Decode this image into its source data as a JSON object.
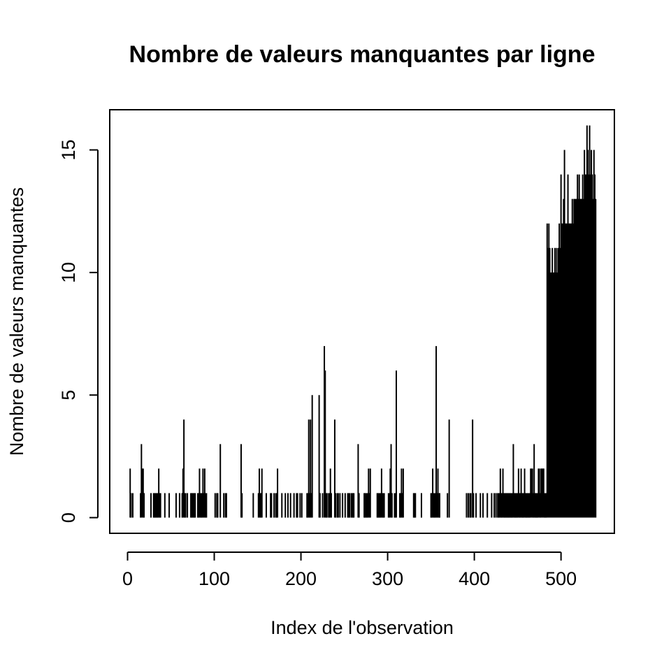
{
  "chart_data": {
    "type": "spike",
    "title": "Nombre de valeurs manquantes par ligne",
    "x_label": "Index de l'observation",
    "y_label": "Nombre de valeurs manquantes",
    "color": "#000000",
    "xlim": [
      -20.56,
      561.56
    ],
    "ylim": [
      -0.64,
      16.64
    ],
    "xticks": [
      0,
      100,
      200,
      300,
      400,
      500
    ],
    "yticks": [
      0,
      5,
      10,
      15
    ],
    "x": [
      1,
      2,
      3,
      4,
      5,
      6,
      7,
      8,
      9,
      10,
      11,
      12,
      13,
      14,
      15,
      16,
      17,
      18,
      19,
      20,
      21,
      22,
      23,
      24,
      25,
      26,
      27,
      28,
      29,
      30,
      31,
      32,
      33,
      34,
      35,
      36,
      37,
      38,
      39,
      40,
      41,
      42,
      43,
      44,
      45,
      46,
      47,
      48,
      49,
      50,
      51,
      52,
      53,
      54,
      55,
      56,
      57,
      58,
      59,
      60,
      61,
      62,
      63,
      64,
      65,
      66,
      67,
      68,
      69,
      70,
      71,
      72,
      73,
      74,
      75,
      76,
      77,
      78,
      79,
      80,
      81,
      82,
      83,
      84,
      85,
      86,
      87,
      88,
      89,
      90,
      91,
      92,
      93,
      94,
      95,
      96,
      97,
      98,
      99,
      100,
      101,
      102,
      103,
      104,
      105,
      106,
      107,
      108,
      109,
      110,
      111,
      112,
      113,
      114,
      115,
      116,
      117,
      118,
      119,
      120,
      121,
      122,
      123,
      124,
      125,
      126,
      127,
      128,
      129,
      130,
      131,
      132,
      133,
      134,
      135,
      136,
      137,
      138,
      139,
      140,
      141,
      142,
      143,
      144,
      145,
      146,
      147,
      148,
      149,
      150,
      151,
      152,
      153,
      154,
      155,
      156,
      157,
      158,
      159,
      160,
      161,
      162,
      163,
      164,
      165,
      166,
      167,
      168,
      169,
      170,
      171,
      172,
      173,
      174,
      175,
      176,
      177,
      178,
      179,
      180,
      181,
      182,
      183,
      184,
      185,
      186,
      187,
      188,
      189,
      190,
      191,
      192,
      193,
      194,
      195,
      196,
      197,
      198,
      199,
      200,
      201,
      202,
      203,
      204,
      205,
      206,
      207,
      208,
      209,
      210,
      211,
      212,
      213,
      214,
      215,
      216,
      217,
      218,
      219,
      220,
      221,
      222,
      223,
      224,
      225,
      226,
      227,
      228,
      229,
      230,
      231,
      232,
      233,
      234,
      235,
      236,
      237,
      238,
      239,
      240,
      241,
      242,
      243,
      244,
      245,
      246,
      247,
      248,
      249,
      250,
      251,
      252,
      253,
      254,
      255,
      256,
      257,
      258,
      259,
      260,
      261,
      262,
      263,
      264,
      265,
      266,
      267,
      268,
      269,
      270,
      271,
      272,
      273,
      274,
      275,
      276,
      277,
      278,
      279,
      280,
      281,
      282,
      283,
      284,
      285,
      286,
      287,
      288,
      289,
      290,
      291,
      292,
      293,
      294,
      295,
      296,
      297,
      298,
      299,
      300,
      301,
      302,
      303,
      304,
      305,
      306,
      307,
      308,
      309,
      310,
      311,
      312,
      313,
      314,
      315,
      316,
      317,
      318,
      319,
      320,
      321,
      322,
      323,
      324,
      325,
      326,
      327,
      328,
      329,
      330,
      331,
      332,
      333,
      334,
      335,
      336,
      337,
      338,
      339,
      340,
      341,
      342,
      343,
      344,
      345,
      346,
      347,
      348,
      349,
      350,
      351,
      352,
      353,
      354,
      355,
      356,
      357,
      358,
      359,
      360,
      361,
      362,
      363,
      364,
      365,
      366,
      367,
      368,
      369,
      370,
      371,
      372,
      373,
      374,
      375,
      376,
      377,
      378,
      379,
      380,
      381,
      382,
      383,
      384,
      385,
      386,
      387,
      388,
      389,
      390,
      391,
      392,
      393,
      394,
      395,
      396,
      397,
      398,
      399,
      400,
      401,
      402,
      403,
      404,
      405,
      406,
      407,
      408,
      409,
      410,
      411,
      412,
      413,
      414,
      415,
      416,
      417,
      418,
      419,
      420,
      421,
      422,
      423,
      424,
      425,
      426,
      427,
      428,
      429,
      430,
      431,
      432,
      433,
      434,
      435,
      436,
      437,
      438,
      439,
      440,
      441,
      442,
      443,
      444,
      445,
      446,
      447,
      448,
      449,
      450,
      451,
      452,
      453,
      454,
      455,
      456,
      457,
      458,
      459,
      460,
      461,
      462,
      463,
      464,
      465,
      466,
      467,
      468,
      469,
      470,
      471,
      472,
      473,
      474,
      475,
      476,
      477,
      478,
      479,
      480,
      481,
      482,
      483,
      484,
      485,
      486,
      487,
      488,
      489,
      490,
      491,
      492,
      493,
      494,
      495,
      496,
      497,
      498,
      499,
      500,
      501,
      502,
      503,
      504,
      505,
      506,
      507,
      508,
      509,
      510,
      511,
      512,
      513,
      514,
      515,
      516,
      517,
      518,
      519,
      520,
      521,
      522,
      523,
      524,
      525,
      526,
      527,
      528,
      529,
      530,
      531,
      532,
      533,
      534,
      535,
      536,
      537,
      538,
      539,
      540
    ],
    "values": [
      0,
      0,
      2,
      1,
      0,
      1,
      0,
      0,
      0,
      0,
      0,
      0,
      0,
      0,
      1,
      3,
      2,
      2,
      1,
      0,
      0,
      0,
      0,
      0,
      0,
      0,
      1,
      0,
      0,
      1,
      1,
      1,
      1,
      1,
      1,
      2,
      1,
      1,
      0,
      0,
      0,
      0,
      1,
      0,
      0,
      0,
      0,
      1,
      0,
      0,
      0,
      0,
      0,
      0,
      0,
      1,
      0,
      0,
      0,
      1,
      0,
      0,
      1,
      2,
      4,
      1,
      1,
      0,
      1,
      0,
      0,
      0,
      1,
      1,
      1,
      1,
      1,
      1,
      0,
      0,
      1,
      1,
      2,
      1,
      1,
      1,
      2,
      1,
      2,
      1,
      1,
      0,
      0,
      0,
      0,
      0,
      0,
      0,
      0,
      0,
      1,
      0,
      1,
      1,
      0,
      0,
      3,
      0,
      0,
      0,
      1,
      0,
      1,
      1,
      0,
      0,
      0,
      0,
      0,
      0,
      0,
      0,
      0,
      0,
      0,
      0,
      0,
      0,
      0,
      0,
      3,
      1,
      0,
      0,
      0,
      0,
      0,
      0,
      0,
      0,
      0,
      0,
      0,
      0,
      1,
      0,
      0,
      0,
      0,
      0,
      1,
      2,
      1,
      1,
      2,
      0,
      0,
      0,
      0,
      1,
      0,
      0,
      0,
      0,
      1,
      1,
      0,
      0,
      1,
      0,
      1,
      1,
      2,
      0,
      0,
      0,
      0,
      1,
      0,
      0,
      0,
      1,
      0,
      0,
      1,
      0,
      0,
      1,
      0,
      0,
      0,
      1,
      0,
      0,
      1,
      1,
      0,
      0,
      1,
      0,
      1,
      0,
      0,
      0,
      0,
      0,
      1,
      1,
      4,
      1,
      4,
      1,
      5,
      0,
      0,
      0,
      0,
      0,
      0,
      0,
      5,
      1,
      0,
      0,
      1,
      0,
      7,
      6,
      1,
      1,
      0,
      1,
      1,
      2,
      1,
      0,
      0,
      0,
      4,
      1,
      0,
      1,
      1,
      0,
      1,
      0,
      0,
      1,
      0,
      0,
      1,
      0,
      0,
      1,
      1,
      1,
      0,
      1,
      1,
      1,
      1,
      0,
      0,
      0,
      0,
      3,
      1,
      0,
      0,
      0,
      0,
      0,
      1,
      1,
      1,
      1,
      1,
      2,
      1,
      2,
      0,
      0,
      0,
      0,
      0,
      0,
      0,
      1,
      1,
      1,
      1,
      1,
      2,
      1,
      1,
      1,
      0,
      0,
      0,
      0,
      1,
      1,
      2,
      3,
      1,
      0,
      0,
      1,
      1,
      6,
      0,
      0,
      0,
      1,
      1,
      2,
      1,
      2,
      0,
      0,
      0,
      0,
      0,
      0,
      0,
      0,
      0,
      0,
      0,
      1,
      1,
      1,
      0,
      0,
      0,
      0,
      0,
      0,
      1,
      0,
      0,
      0,
      0,
      0,
      0,
      0,
      0,
      0,
      0,
      1,
      1,
      2,
      1,
      1,
      1,
      7,
      1,
      2,
      1,
      1,
      0,
      0,
      0,
      0,
      0,
      0,
      0,
      0,
      1,
      0,
      4,
      0,
      0,
      0,
      0,
      0,
      0,
      0,
      0,
      0,
      0,
      0,
      0,
      0,
      0,
      0,
      0,
      0,
      0,
      0,
      1,
      0,
      1,
      0,
      1,
      1,
      0,
      4,
      1,
      0,
      0,
      1,
      0,
      0,
      0,
      0,
      1,
      0,
      0,
      1,
      0,
      0,
      0,
      0,
      1,
      0,
      0,
      0,
      0,
      1,
      0,
      0,
      1,
      0,
      1,
      0,
      1,
      1,
      1,
      2,
      1,
      1,
      2,
      1,
      1,
      1,
      1,
      1,
      1,
      1,
      1,
      1,
      1,
      1,
      3,
      1,
      1,
      1,
      1,
      1,
      2,
      1,
      1,
      2,
      1,
      1,
      1,
      2,
      1,
      1,
      1,
      1,
      1,
      1,
      2,
      2,
      2,
      1,
      3,
      1,
      1,
      1,
      1,
      2,
      2,
      1,
      2,
      2,
      2,
      2,
      1,
      1,
      1,
      12,
      11,
      12,
      11,
      10,
      10,
      11,
      10,
      10,
      11,
      10,
      11,
      10,
      11,
      12,
      11,
      14,
      12,
      12,
      13,
      15,
      12,
      12,
      12,
      14,
      12,
      12,
      12,
      12,
      13,
      12,
      13,
      13,
      13,
      13,
      14,
      13,
      14,
      13,
      13,
      13,
      14,
      13,
      15,
      14,
      14,
      16,
      15,
      14,
      16,
      14,
      15,
      14,
      13,
      15,
      14,
      13
    ]
  }
}
